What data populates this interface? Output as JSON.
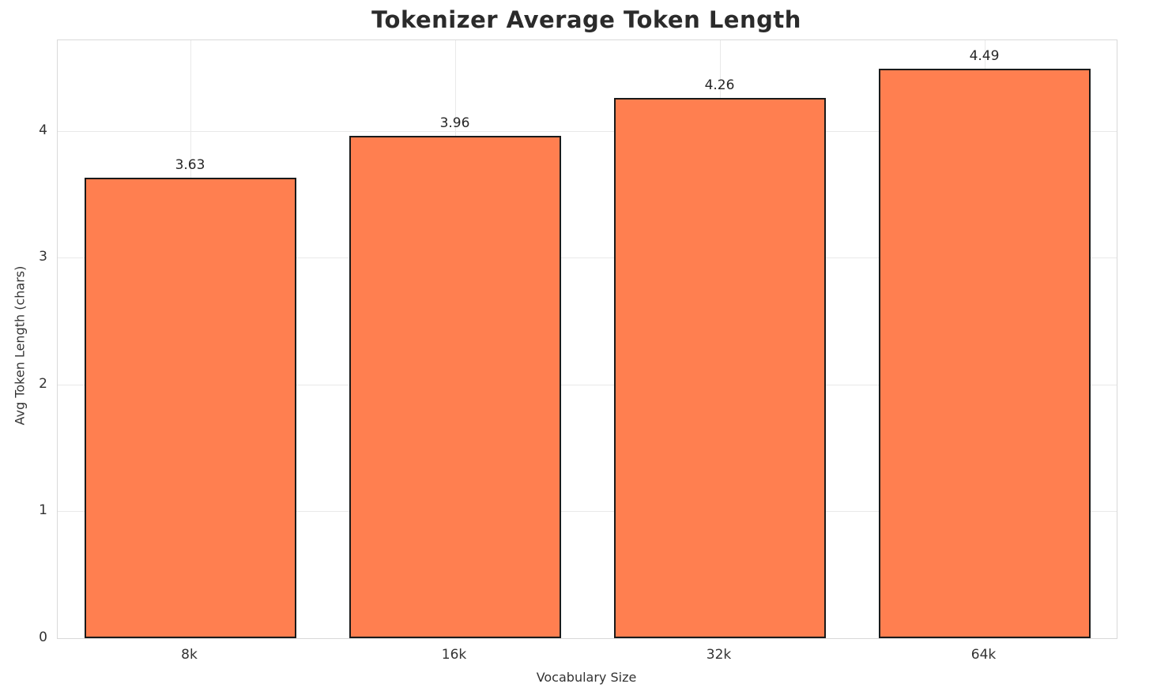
{
  "chart_data": {
    "type": "bar",
    "title": "Tokenizer Average Token Length",
    "categories": [
      "8k",
      "16k",
      "32k",
      "64k"
    ],
    "values": [
      3.63,
      3.96,
      4.26,
      4.49
    ],
    "value_labels": [
      "3.63",
      "3.96",
      "4.26",
      "4.49"
    ],
    "xlabel": "Vocabulary Size",
    "ylabel": "Avg Token Length (chars)",
    "ylim": [
      0,
      4.715
    ],
    "yticks": [
      0,
      1,
      2,
      3,
      4
    ],
    "grid": true,
    "legend": "none",
    "bar_color": "#FF7F50",
    "bar_edge_color": "#1a1a1a",
    "bar_width_fraction": 0.8
  }
}
